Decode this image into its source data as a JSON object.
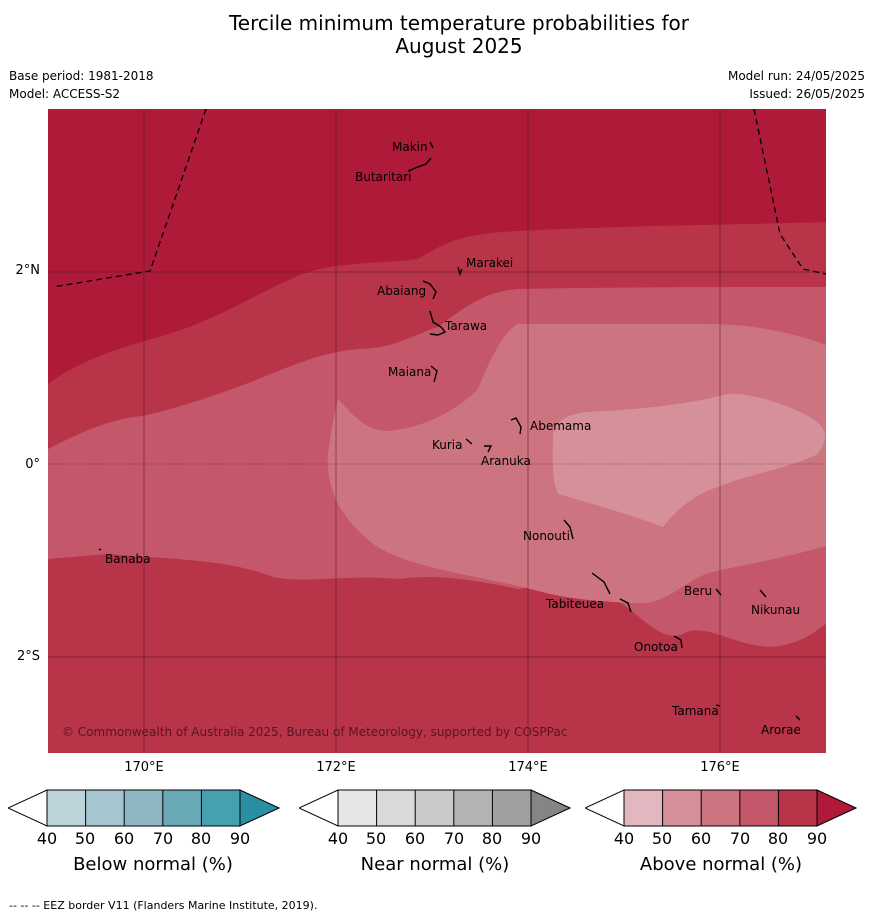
{
  "title_line1": "Tercile minimum temperature probabilities for",
  "title_line2": "August 2025",
  "meta_left": {
    "base_period": "Base period: 1981-2018",
    "model": "Model: ACCESS-S2"
  },
  "meta_right": {
    "model_run": "Model run: 24/05/2025",
    "issued": "Issued: 26/05/2025"
  },
  "axis": {
    "y_labels": [
      "2°N",
      "0°",
      "2°S"
    ],
    "x_labels": [
      "170°E",
      "172°E",
      "174°E",
      "176°E"
    ]
  },
  "places": [
    "Makin",
    "Butaritari",
    "Marakei",
    "Abaiang",
    "Tarawa",
    "Maiana",
    "Abemama",
    "Kuria",
    "Aranuka",
    "Nonouti",
    "Banaba",
    "Beru",
    "Nikunau",
    "Tabiteuea",
    "Onotoa",
    "Tamana",
    "Arorae"
  ],
  "copyright": "© Commonwealth of Australia 2025, Bureau of Meteorology, supported by COSPPac",
  "colorbars": [
    {
      "title": "Below normal (%)",
      "ticks": [
        "40",
        "50",
        "60",
        "70",
        "80",
        "90"
      ],
      "colors": [
        "#ffffff",
        "#bdd3da",
        "#a6c6cf",
        "#8cb7c3",
        "#6aa9b8",
        "#47a0b0",
        "#2a8fa3"
      ]
    },
    {
      "title": "Near normal (%)",
      "ticks": [
        "40",
        "50",
        "60",
        "70",
        "80",
        "90"
      ],
      "colors": [
        "#ffffff",
        "#e6e6e6",
        "#d9d9d9",
        "#c9c9c9",
        "#b3b3b3",
        "#a0a0a0",
        "#858585"
      ]
    },
    {
      "title": "Above normal (%)",
      "ticks": [
        "40",
        "50",
        "60",
        "70",
        "80",
        "90"
      ],
      "colors": [
        "#ffffff",
        "#e2b7bf",
        "#d6909a",
        "#cc7480",
        "#c4586a",
        "#b73449",
        "#ae1a38"
      ]
    }
  ],
  "footnote": "--  --  -- EEZ border V11 (Flanders Marine Institute, 2019)."
}
